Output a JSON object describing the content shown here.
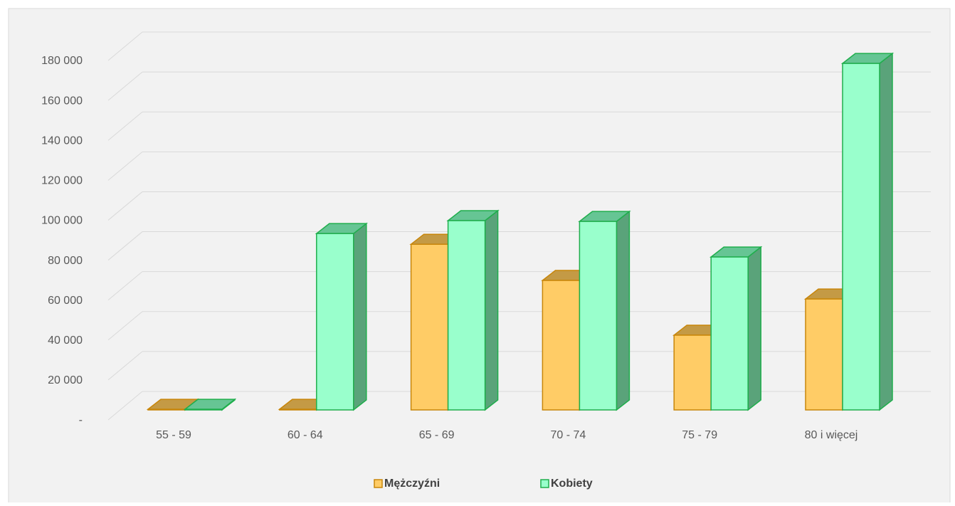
{
  "chart_data": {
    "type": "bar3d",
    "categories": [
      "55 - 59",
      "60 - 64",
      "65 - 69",
      "70 - 74",
      "75 - 79",
      "80 i więcej"
    ],
    "series": [
      {
        "name": "Mężczyźni",
        "color": "#ffcc66",
        "values": [
          300,
          300,
          82000,
          64100,
          37000,
          54900
        ]
      },
      {
        "name": "Kobiety",
        "color": "#99ffcc",
        "values": [
          300,
          87300,
          93700,
          93300,
          75700,
          171500
        ]
      }
    ],
    "ylim": [
      0,
      180000
    ],
    "yticks": [
      {
        "value": 0,
        "label": "-"
      },
      {
        "value": 20000,
        "label": "20 000"
      },
      {
        "value": 40000,
        "label": "40 000"
      },
      {
        "value": 60000,
        "label": "60 000"
      },
      {
        "value": 80000,
        "label": "80 000"
      },
      {
        "value": 100000,
        "label": "100 000"
      },
      {
        "value": 120000,
        "label": "120 000"
      },
      {
        "value": 140000,
        "label": "140 000"
      },
      {
        "value": 160000,
        "label": "160 000"
      },
      {
        "value": 180000,
        "label": "180 000"
      }
    ],
    "grid": true
  }
}
